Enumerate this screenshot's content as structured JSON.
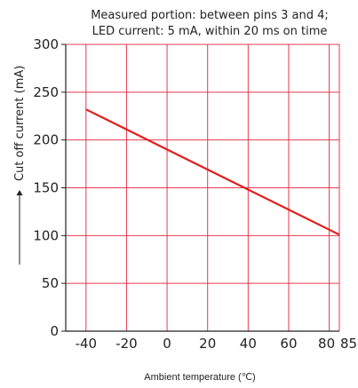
{
  "chart_data": {
    "type": "line",
    "annotation_lines": [
      "Measured portion: between pins 3 and 4;",
      "LED current: 5 mA, within 20 ms on time"
    ],
    "xlabel": "Ambient temperature (℃)",
    "ylabel": "Cut off current (mA)",
    "xlim": [
      -50,
      85
    ],
    "ylim": [
      0,
      300
    ],
    "x_ticks": [
      -40,
      -20,
      0,
      20,
      40,
      60,
      80,
      85
    ],
    "y_ticks": [
      0,
      50,
      100,
      150,
      200,
      250,
      300
    ],
    "x_gridlines": [
      -50,
      -40,
      -20,
      0,
      20,
      40,
      60,
      80,
      85
    ],
    "y_gridlines": [
      0,
      50,
      100,
      150,
      200,
      250,
      300
    ],
    "grid": true,
    "series": [
      {
        "x": [
          -40,
          85
        ],
        "y": [
          232,
          101
        ]
      }
    ],
    "colors": {
      "grid": "#e8384f",
      "series": "#e02020",
      "axes": "#222222"
    }
  }
}
